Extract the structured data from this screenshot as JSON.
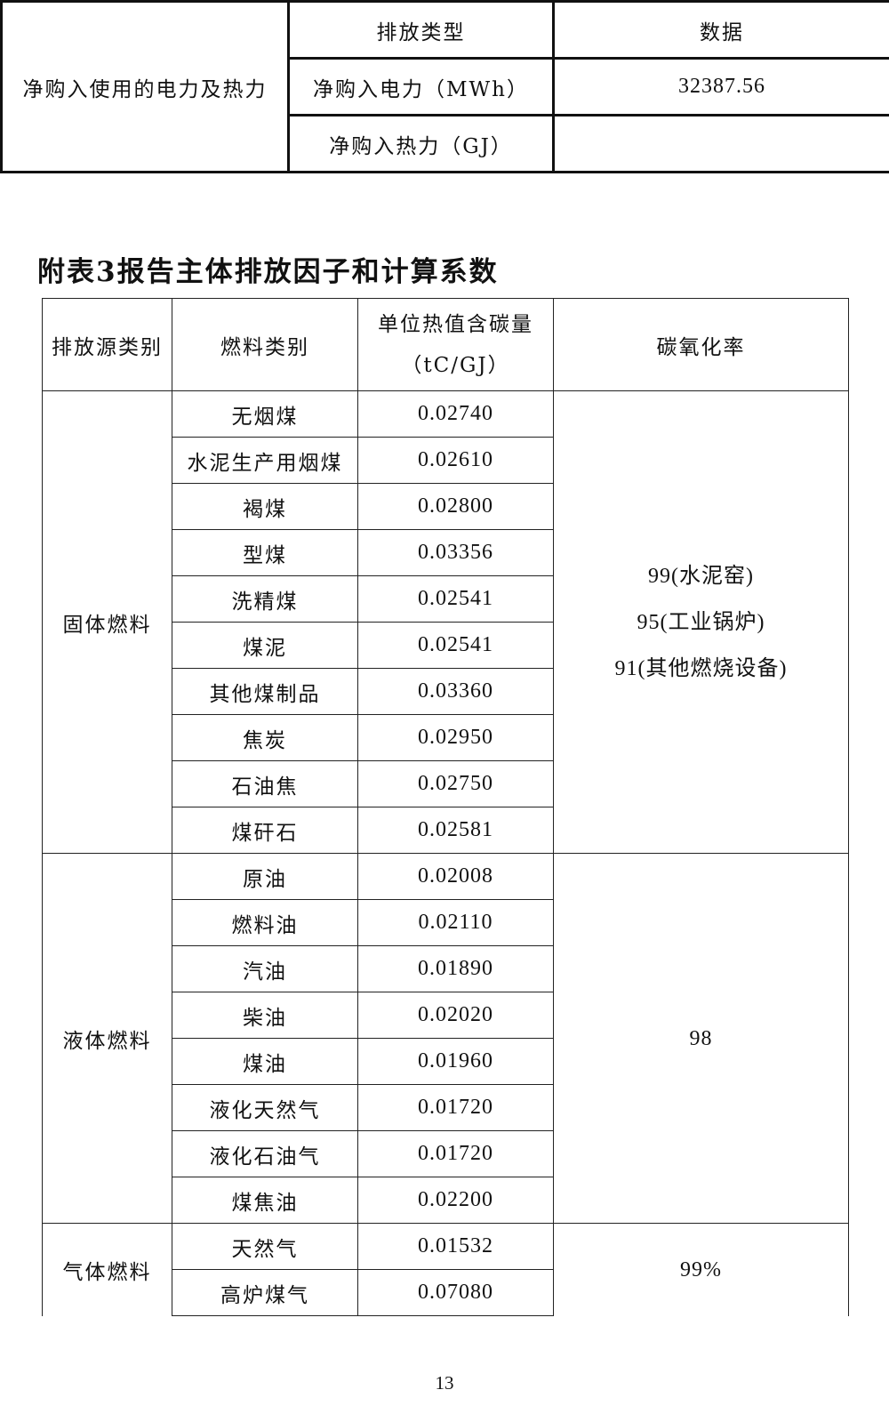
{
  "table1": {
    "category": "净购入使用的电力及热力",
    "header": {
      "type": "排放类型",
      "data": "数据"
    },
    "rows": [
      {
        "type": "净购入电力（MWh）",
        "value": "32387.56"
      },
      {
        "type": "净购入热力（GJ）",
        "value": ""
      }
    ]
  },
  "title": "附表3报告主体排放因子和计算系数",
  "table2": {
    "headers": {
      "source": "排放源类别",
      "fuel": "燃料类别",
      "carbon_line1": "单位热值含碳量",
      "carbon_line2": "（tC/GJ）",
      "oxidation": "碳氧化率"
    },
    "groups": [
      {
        "source": "固体燃料",
        "oxidation": [
          "99(水泥窑)",
          "95(工业锅炉)",
          "91(其他燃烧设备)"
        ],
        "rows": [
          {
            "fuel": "无烟煤",
            "carbon": "0.02740"
          },
          {
            "fuel": "水泥生产用烟煤",
            "carbon": "0.02610"
          },
          {
            "fuel": "褐煤",
            "carbon": "0.02800"
          },
          {
            "fuel": "型煤",
            "carbon": "0.03356"
          },
          {
            "fuel": "洗精煤",
            "carbon": "0.02541"
          },
          {
            "fuel": "煤泥",
            "carbon": "0.02541"
          },
          {
            "fuel": "其他煤制品",
            "carbon": "0.03360"
          },
          {
            "fuel": "焦炭",
            "carbon": "0.02950"
          },
          {
            "fuel": "石油焦",
            "carbon": "0.02750"
          },
          {
            "fuel": "煤矸石",
            "carbon": "0.02581"
          }
        ]
      },
      {
        "source": "液体燃料",
        "oxidation": [
          "98"
        ],
        "rows": [
          {
            "fuel": "原油",
            "carbon": "0.02008"
          },
          {
            "fuel": "燃料油",
            "carbon": "0.02110"
          },
          {
            "fuel": "汽油",
            "carbon": "0.01890"
          },
          {
            "fuel": "柴油",
            "carbon": "0.02020"
          },
          {
            "fuel": "煤油",
            "carbon": "0.01960"
          },
          {
            "fuel": "液化天然气",
            "carbon": "0.01720"
          },
          {
            "fuel": "液化石油气",
            "carbon": "0.01720"
          },
          {
            "fuel": "煤焦油",
            "carbon": "0.02200"
          }
        ]
      },
      {
        "source": "气体燃料",
        "oxidation": [
          "99%"
        ],
        "rows": [
          {
            "fuel": "天然气",
            "carbon": "0.01532"
          },
          {
            "fuel": "高炉煤气",
            "carbon": "0.07080"
          }
        ]
      }
    ]
  },
  "page_number": "13"
}
